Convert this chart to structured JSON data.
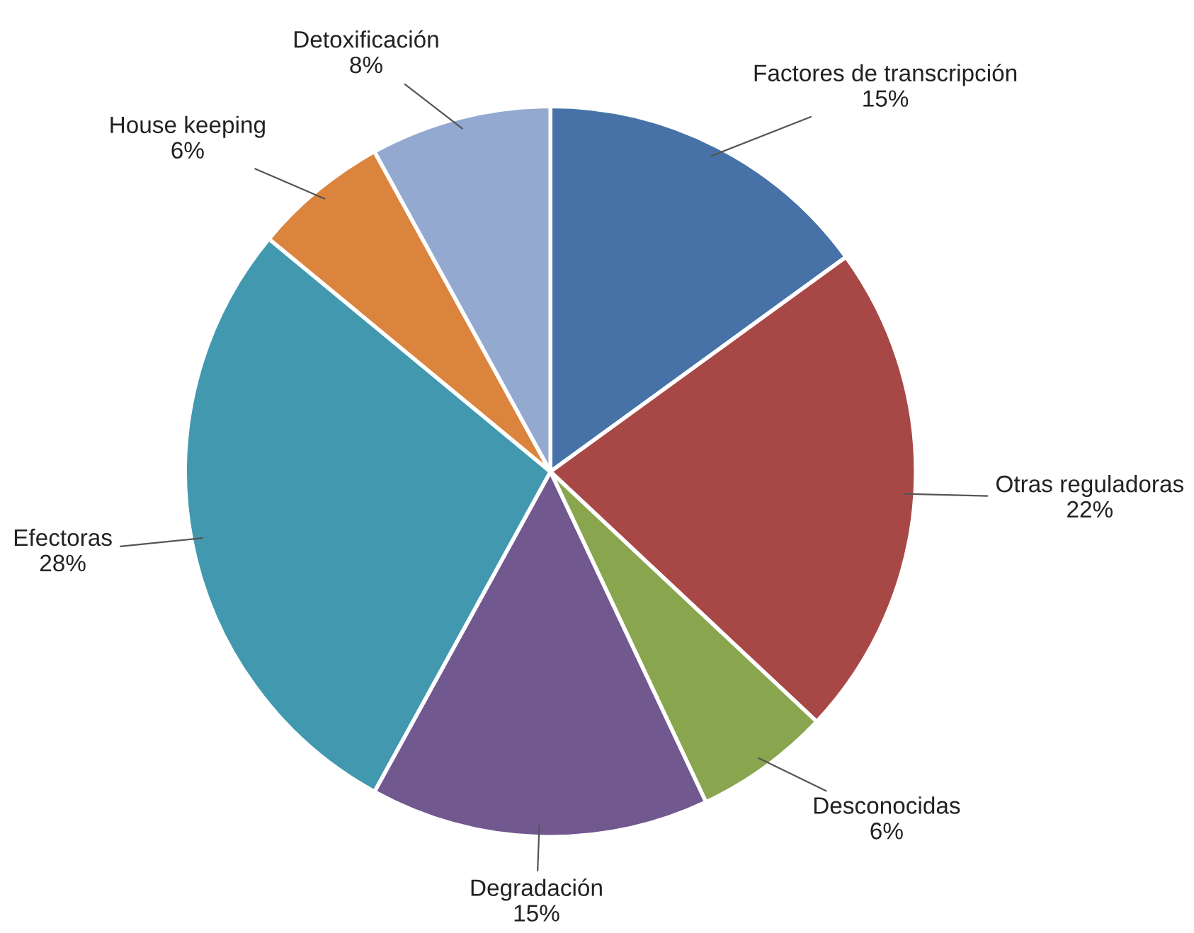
{
  "chart_data": {
    "type": "pie",
    "categories": [
      "Factores de transcripción",
      "Otras reguladoras",
      "Desconocidas",
      "Degradación",
      "Efectoras",
      "House keeping",
      "Detoxificación"
    ],
    "values": [
      15,
      22,
      6,
      15,
      28,
      6,
      8
    ],
    "value_labels": [
      "15%",
      "22%",
      "6%",
      "15%",
      "28%",
      "6%",
      "8%"
    ],
    "colors": [
      "#4672a8",
      "#a84846",
      "#89a54e",
      "#71588f",
      "#4198af",
      "#db843d",
      "#93a9cf"
    ]
  }
}
